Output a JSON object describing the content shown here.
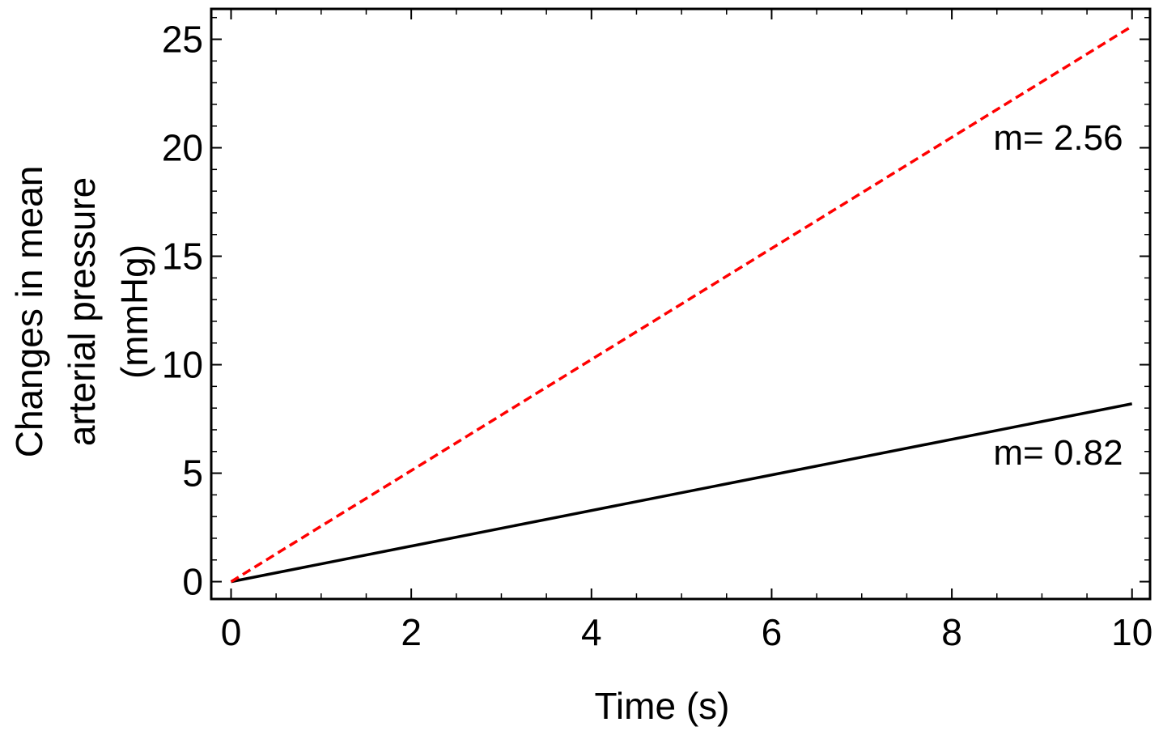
{
  "chart_data": {
    "type": "line",
    "title": "",
    "xlabel": "Time (s)",
    "ylabel_lines": [
      "Changes in mean",
      "arterial pressure",
      "(mmHg)"
    ],
    "xlim": [
      -0.22,
      10.2
    ],
    "ylim": [
      -0.8,
      26.4
    ],
    "x_ticks": [
      0,
      2,
      4,
      6,
      8,
      10
    ],
    "x_tick_labels": [
      "0",
      "2",
      "4",
      "6",
      "8",
      "10"
    ],
    "x_minor_step": 0.5,
    "y_ticks": [
      0,
      5,
      10,
      15,
      20,
      25
    ],
    "y_tick_labels": [
      "0",
      "5",
      "10",
      "15",
      "20",
      "25"
    ],
    "y_minor_step": 1,
    "grid": false,
    "legend": "none",
    "series": [
      {
        "style": "dashed",
        "color": "#ff0000",
        "x": [
          0,
          10
        ],
        "y": [
          0,
          25.6
        ]
      },
      {
        "style": "solid",
        "color": "#000000",
        "x": [
          0,
          10
        ],
        "y": [
          0,
          8.2
        ]
      }
    ],
    "annotations": [
      {
        "text": "m= 2.56",
        "x": 9.9,
        "y": 19.9
      },
      {
        "text": "m= 0.82",
        "x": 9.9,
        "y": 5.4
      }
    ]
  }
}
